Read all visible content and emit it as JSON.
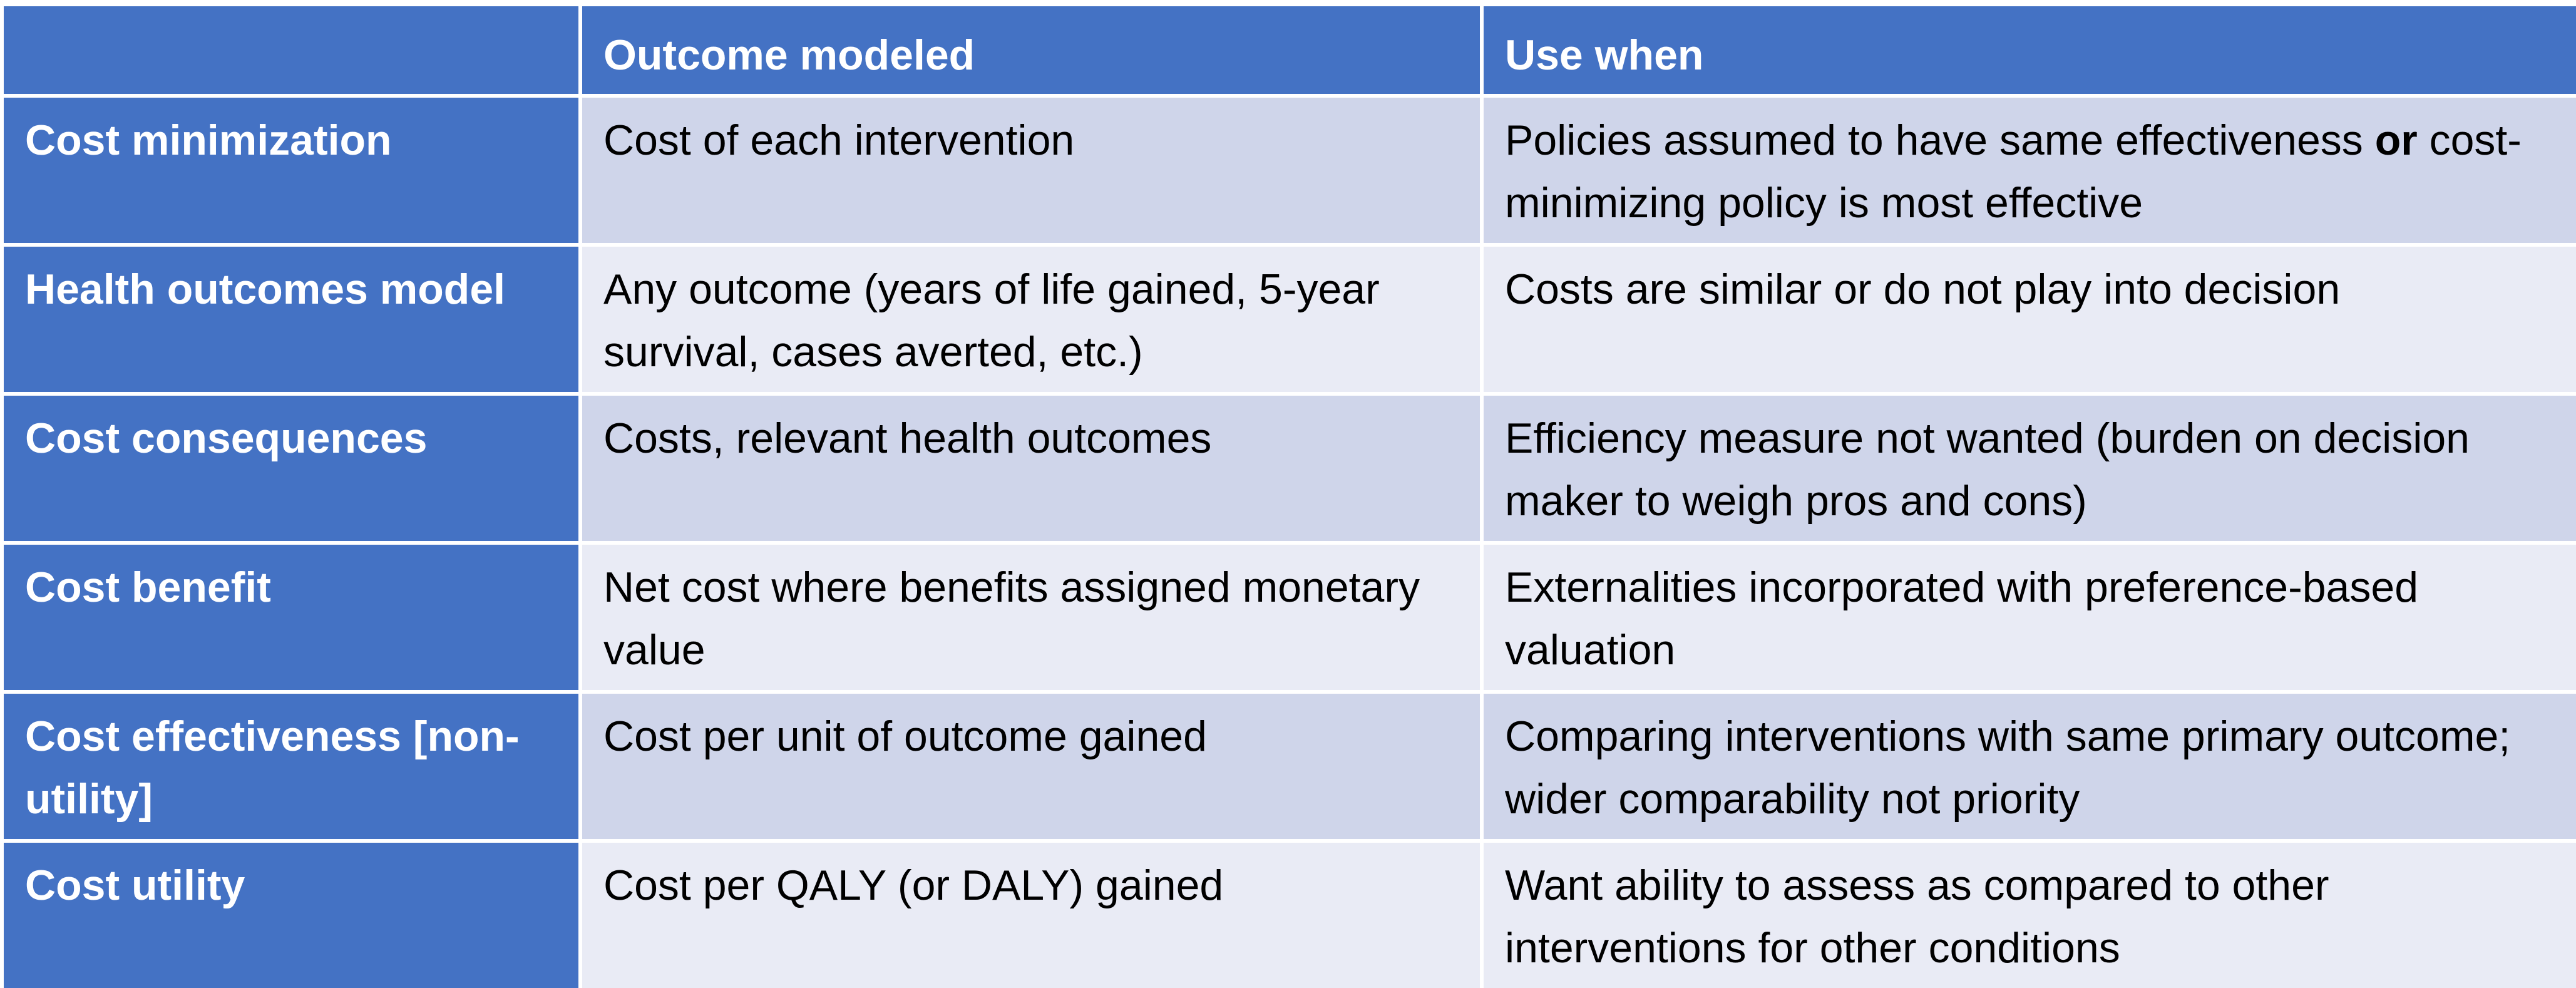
{
  "header": {
    "col0": "",
    "col1": "Outcome modeled",
    "col2": "Use when"
  },
  "rows": [
    {
      "type": "Cost minimization",
      "outcome": "Cost of each intervention",
      "use_when_a": "Policies assumed to have same effectiveness ",
      "use_when_bold": "or",
      "use_when_b": " cost-minimizing policy is most effective"
    },
    {
      "type": "Health outcomes model",
      "outcome": "Any outcome (years of life gained, 5-year survival, cases averted, etc.)",
      "use_when": "Costs are similar or do not play into decision"
    },
    {
      "type": "Cost consequences",
      "outcome": "Costs, relevant health outcomes",
      "use_when": "Efficiency measure not wanted (burden on decision maker to weigh pros and cons)"
    },
    {
      "type": "Cost benefit",
      "outcome": "Net cost where benefits assigned monetary value",
      "use_when": "Externalities incorporated with preference-based valuation"
    },
    {
      "type": "Cost effectiveness [non-utility]",
      "outcome": "Cost per unit of outcome gained",
      "use_when": "Comparing interventions with same primary outcome; wider comparability not priority"
    },
    {
      "type": "Cost utility",
      "outcome": "Cost per QALY (or DALY) gained",
      "use_when": "Want ability to assess as compared to other interventions for other conditions"
    }
  ],
  "colors": {
    "header_bg": "#4472C4",
    "band_dark": "#CFD5EA",
    "band_light": "#E9EBF5"
  }
}
